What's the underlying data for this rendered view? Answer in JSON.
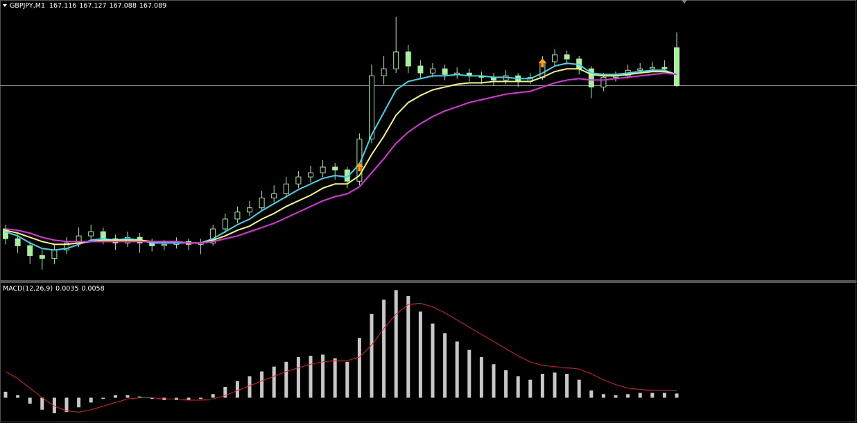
{
  "chart_data": [
    {
      "type": "candlestick",
      "symbol": "GBPJPY,M1",
      "open": [
        166.987,
        166.98,
        166.975,
        166.968,
        166.966,
        166.972,
        166.977,
        166.982,
        166.985,
        166.98,
        166.977,
        166.981,
        166.977,
        166.975,
        166.976,
        166.978,
        166.976,
        166.977,
        166.987,
        166.994,
        166.999,
        167.002,
        167.009,
        167.012,
        167.019,
        167.024,
        167.027,
        167.031,
        167.029,
        167.021,
        167.051,
        167.096,
        167.101,
        167.113,
        167.103,
        167.098,
        167.101,
        167.097,
        167.098,
        167.096,
        167.095,
        167.093,
        167.096,
        167.092,
        167.095,
        167.106,
        167.111,
        167.108,
        167.101,
        167.088,
        167.095,
        167.096,
        167.1,
        167.101,
        167.102,
        167.116
      ],
      "high": [
        166.99,
        166.983,
        166.978,
        166.972,
        166.976,
        166.981,
        166.988,
        166.99,
        166.988,
        166.983,
        166.985,
        166.984,
        166.98,
        166.979,
        166.981,
        166.98,
        166.98,
        166.99,
        166.998,
        167.003,
        167.007,
        167.014,
        167.018,
        167.024,
        167.028,
        167.032,
        167.036,
        167.034,
        167.031,
        167.055,
        167.104,
        167.11,
        167.138,
        167.118,
        167.107,
        167.105,
        167.104,
        167.102,
        167.101,
        167.099,
        167.098,
        167.1,
        167.098,
        167.098,
        167.11,
        167.115,
        167.114,
        167.11,
        167.103,
        167.098,
        167.099,
        167.104,
        167.105,
        167.106,
        167.107,
        167.127
      ],
      "low": [
        166.976,
        166.97,
        166.962,
        166.958,
        166.962,
        166.969,
        166.974,
        166.979,
        166.976,
        166.972,
        166.974,
        166.97,
        166.971,
        166.972,
        166.973,
        166.972,
        166.969,
        166.975,
        166.984,
        166.991,
        166.996,
        167.0,
        167.006,
        167.009,
        167.016,
        167.02,
        167.024,
        167.022,
        167.016,
        167.018,
        167.048,
        167.09,
        167.098,
        167.098,
        167.094,
        167.095,
        167.093,
        167.094,
        167.092,
        167.09,
        167.089,
        167.09,
        167.088,
        167.09,
        167.093,
        167.103,
        167.104,
        167.097,
        167.08,
        167.085,
        167.092,
        167.094,
        167.098,
        167.099,
        167.098,
        167.088
      ],
      "close": [
        166.98,
        166.975,
        166.968,
        166.966,
        166.972,
        166.977,
        166.982,
        166.985,
        166.98,
        166.977,
        166.981,
        166.977,
        166.975,
        166.976,
        166.978,
        166.976,
        166.977,
        166.987,
        166.994,
        166.999,
        167.002,
        167.009,
        167.012,
        167.019,
        167.024,
        167.027,
        167.031,
        167.029,
        167.021,
        167.051,
        167.096,
        167.101,
        167.113,
        167.103,
        167.098,
        167.101,
        167.097,
        167.098,
        167.096,
        167.095,
        167.093,
        167.096,
        167.092,
        167.095,
        167.106,
        167.111,
        167.108,
        167.101,
        167.088,
        167.095,
        167.096,
        167.1,
        167.101,
        167.102,
        167.101,
        167.089
      ],
      "up_color": "#000000",
      "down_color": "#a8f0a0",
      "candle_stroke": "#a8f0a0",
      "series": [
        {
          "color": "#3ad8f0",
          "values": [
            166.985,
            166.982,
            166.977,
            166.973,
            166.972,
            166.973,
            166.976,
            166.979,
            166.98,
            166.979,
            166.98,
            166.979,
            166.977,
            166.977,
            166.977,
            166.977,
            166.977,
            166.98,
            166.985,
            166.99,
            166.994,
            167.0,
            167.005,
            167.01,
            167.015,
            167.019,
            167.023,
            167.025,
            167.024,
            167.033,
            167.054,
            167.07,
            167.086,
            167.092,
            167.094,
            167.096,
            167.096,
            167.097,
            167.096,
            167.096,
            167.095,
            167.095,
            167.094,
            167.094,
            167.098,
            167.103,
            167.105,
            167.104,
            167.098,
            167.097,
            167.097,
            167.098,
            167.099,
            167.1,
            167.1,
            167.097
          ]
        },
        {
          "color": "#f8f870",
          "values": [
            166.986,
            166.984,
            166.981,
            166.978,
            166.976,
            166.976,
            166.977,
            166.978,
            166.979,
            166.979,
            166.979,
            166.979,
            166.978,
            166.978,
            166.978,
            166.977,
            166.977,
            166.979,
            166.982,
            166.986,
            166.989,
            166.994,
            166.998,
            167.003,
            167.007,
            167.011,
            167.016,
            167.019,
            167.019,
            167.025,
            167.04,
            167.053,
            167.068,
            167.077,
            167.082,
            167.086,
            167.088,
            167.09,
            167.091,
            167.091,
            167.092,
            167.092,
            167.092,
            167.092,
            167.095,
            167.099,
            167.101,
            167.101,
            167.097,
            167.096,
            167.096,
            167.097,
            167.098,
            167.099,
            167.099,
            167.097
          ]
        },
        {
          "color": "#e030e0",
          "values": [
            166.987,
            166.986,
            166.984,
            166.981,
            166.979,
            166.978,
            166.978,
            166.978,
            166.978,
            166.978,
            166.978,
            166.978,
            166.978,
            166.978,
            166.978,
            166.977,
            166.977,
            166.978,
            166.98,
            166.982,
            166.985,
            166.988,
            166.991,
            166.995,
            166.999,
            167.003,
            167.007,
            167.01,
            167.012,
            167.017,
            167.027,
            167.037,
            167.048,
            167.056,
            167.062,
            167.067,
            167.071,
            167.074,
            167.077,
            167.079,
            167.081,
            167.083,
            167.084,
            167.085,
            167.088,
            167.091,
            167.093,
            167.094,
            167.093,
            167.093,
            167.094,
            167.095,
            167.096,
            167.097,
            167.098,
            167.097
          ]
        }
      ],
      "arrows": [
        {
          "at": 29,
          "value": 167.031
        },
        {
          "at": 44,
          "value": 167.105
        }
      ],
      "arrow_color": "#ff9f1a",
      "price_line_color": "#8c8c8c",
      "ylim": [
        166.95,
        167.15
      ]
    },
    {
      "type": "macd",
      "name": "MACD(12,26,9)",
      "color": "#c8c8c8",
      "values": [
        0.005,
        0.002,
        -0.005,
        -0.01,
        -0.013,
        -0.012,
        -0.008,
        -0.004,
        -0.001,
        0.002,
        0.002,
        0.001,
        -0.001,
        -0.002,
        -0.002,
        -0.002,
        -0.001,
        0.003,
        0.009,
        0.014,
        0.018,
        0.022,
        0.026,
        0.03,
        0.034,
        0.035,
        0.036,
        0.033,
        0.03,
        0.05,
        0.07,
        0.082,
        0.09,
        0.085,
        0.072,
        0.062,
        0.054,
        0.047,
        0.04,
        0.034,
        0.028,
        0.023,
        0.018,
        0.015,
        0.02,
        0.021,
        0.02,
        0.015,
        0.006,
        0.003,
        0.002,
        0.003,
        0.004,
        0.004,
        0.004,
        0.0035
      ],
      "signal": {
        "color": "#e02020",
        "values": [
          0.022,
          0.016,
          0.008,
          0.0,
          -0.007,
          -0.011,
          -0.012,
          -0.01,
          -0.007,
          -0.004,
          -0.001,
          0.0,
          0.0,
          -0.001,
          -0.001,
          -0.002,
          -0.002,
          -0.001,
          0.002,
          0.006,
          0.01,
          0.014,
          0.018,
          0.022,
          0.025,
          0.028,
          0.03,
          0.031,
          0.031,
          0.034,
          0.044,
          0.058,
          0.07,
          0.078,
          0.079,
          0.076,
          0.071,
          0.065,
          0.059,
          0.053,
          0.047,
          0.041,
          0.035,
          0.03,
          0.027,
          0.026,
          0.025,
          0.024,
          0.02,
          0.015,
          0.011,
          0.008,
          0.007,
          0.006,
          0.006,
          0.0058
        ]
      },
      "ylim": [
        -0.02,
        0.096
      ]
    }
  ]
}
